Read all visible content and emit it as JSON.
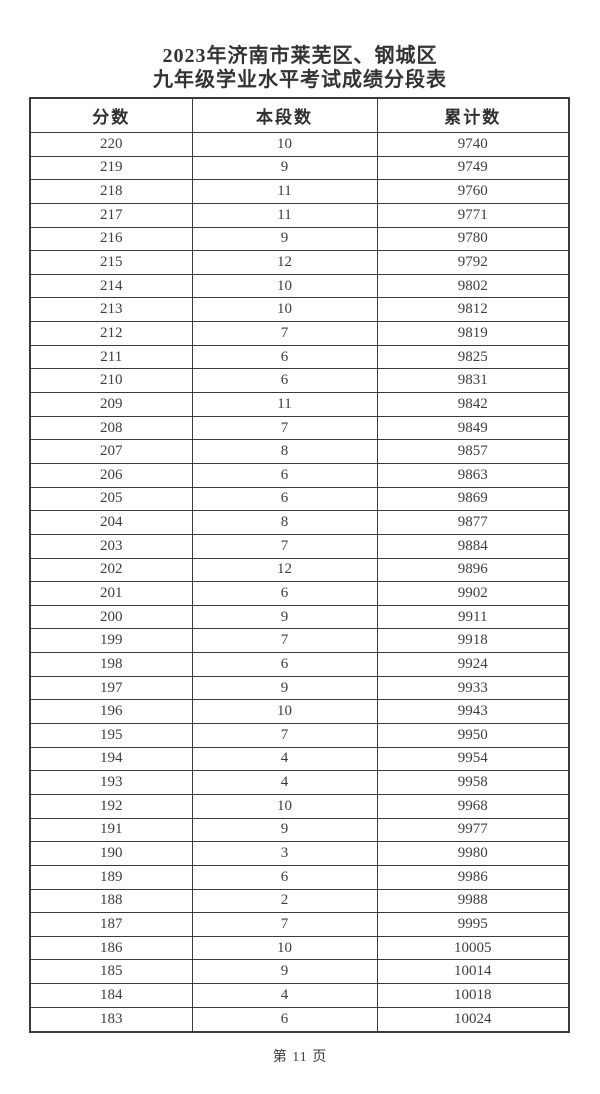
{
  "page": {
    "title_line1": "2023年济南市莱芜区、钢城区",
    "title_line2": "九年级学业水平考试成绩分段表",
    "footer_page_label": "第 11 页"
  },
  "table": {
    "headers": [
      "分数",
      "本段数",
      "累计数"
    ],
    "rows": [
      [
        220,
        10,
        9740
      ],
      [
        219,
        9,
        9749
      ],
      [
        218,
        11,
        9760
      ],
      [
        217,
        11,
        9771
      ],
      [
        216,
        9,
        9780
      ],
      [
        215,
        12,
        9792
      ],
      [
        214,
        10,
        9802
      ],
      [
        213,
        10,
        9812
      ],
      [
        212,
        7,
        9819
      ],
      [
        211,
        6,
        9825
      ],
      [
        210,
        6,
        9831
      ],
      [
        209,
        11,
        9842
      ],
      [
        208,
        7,
        9849
      ],
      [
        207,
        8,
        9857
      ],
      [
        206,
        6,
        9863
      ],
      [
        205,
        6,
        9869
      ],
      [
        204,
        8,
        9877
      ],
      [
        203,
        7,
        9884
      ],
      [
        202,
        12,
        9896
      ],
      [
        201,
        6,
        9902
      ],
      [
        200,
        9,
        9911
      ],
      [
        199,
        7,
        9918
      ],
      [
        198,
        6,
        9924
      ],
      [
        197,
        9,
        9933
      ],
      [
        196,
        10,
        9943
      ],
      [
        195,
        7,
        9950
      ],
      [
        194,
        4,
        9954
      ],
      [
        193,
        4,
        9958
      ],
      [
        192,
        10,
        9968
      ],
      [
        191,
        9,
        9977
      ],
      [
        190,
        3,
        9980
      ],
      [
        189,
        6,
        9986
      ],
      [
        188,
        2,
        9988
      ],
      [
        187,
        7,
        9995
      ],
      [
        186,
        10,
        10005
      ],
      [
        185,
        9,
        10014
      ],
      [
        184,
        4,
        10018
      ],
      [
        183,
        6,
        10024
      ]
    ]
  }
}
